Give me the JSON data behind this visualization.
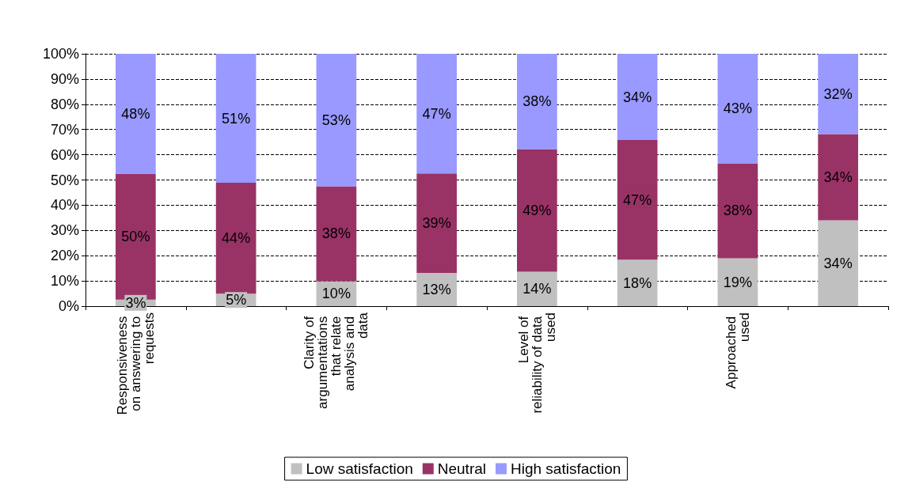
{
  "chart_data": {
    "type": "bar",
    "stacked": true,
    "categories": [
      "Responsiveness on answering to requests",
      null,
      "Clarity of argumentations that relate analysis and data",
      null,
      "Level of reliability of data used",
      null,
      "Approached used",
      null
    ],
    "series": [
      {
        "name": "Low satisfaction",
        "color": "#c0c0c0",
        "values": [
          2.6,
          4.9,
          9.9,
          13.2,
          13.6,
          18.4,
          19,
          34
        ],
        "value_labels": [
          "3%",
          "5%",
          "10%",
          "13%",
          "14%",
          "18%",
          "19%",
          "34%"
        ]
      },
      {
        "name": "Neutral",
        "color": "#993366",
        "values": [
          49.9,
          44,
          37.6,
          39.4,
          48.6,
          47.4,
          37.6,
          34.2
        ],
        "value_labels": [
          "50%",
          "44%",
          "38%",
          "39%",
          "49%",
          "47%",
          "38%",
          "34%"
        ]
      },
      {
        "name": "High satisfaction",
        "color": "#9999ff",
        "values": [
          47.5,
          51.1,
          52.5,
          47.4,
          37.8,
          34.2,
          43.4,
          31.8
        ],
        "value_labels": [
          "48%",
          "51%",
          "53%",
          "47%",
          "38%",
          "34%",
          "43%",
          "32%"
        ]
      }
    ],
    "ylim": [
      0,
      100
    ],
    "yticks": [
      {
        "value": 0,
        "label": "0%"
      },
      {
        "value": 10,
        "label": "10%"
      },
      {
        "value": 20,
        "label": "20%"
      },
      {
        "value": 30,
        "label": "30%"
      },
      {
        "value": 40,
        "label": "40%"
      },
      {
        "value": 50,
        "label": "50%"
      },
      {
        "value": 60,
        "label": "60%"
      },
      {
        "value": 70,
        "label": "70%"
      },
      {
        "value": 80,
        "label": "80%"
      },
      {
        "value": 90,
        "label": "90%"
      },
      {
        "value": 100,
        "label": "100%"
      }
    ],
    "grid": "y",
    "legend": "bottom",
    "line_style": "dashed"
  }
}
